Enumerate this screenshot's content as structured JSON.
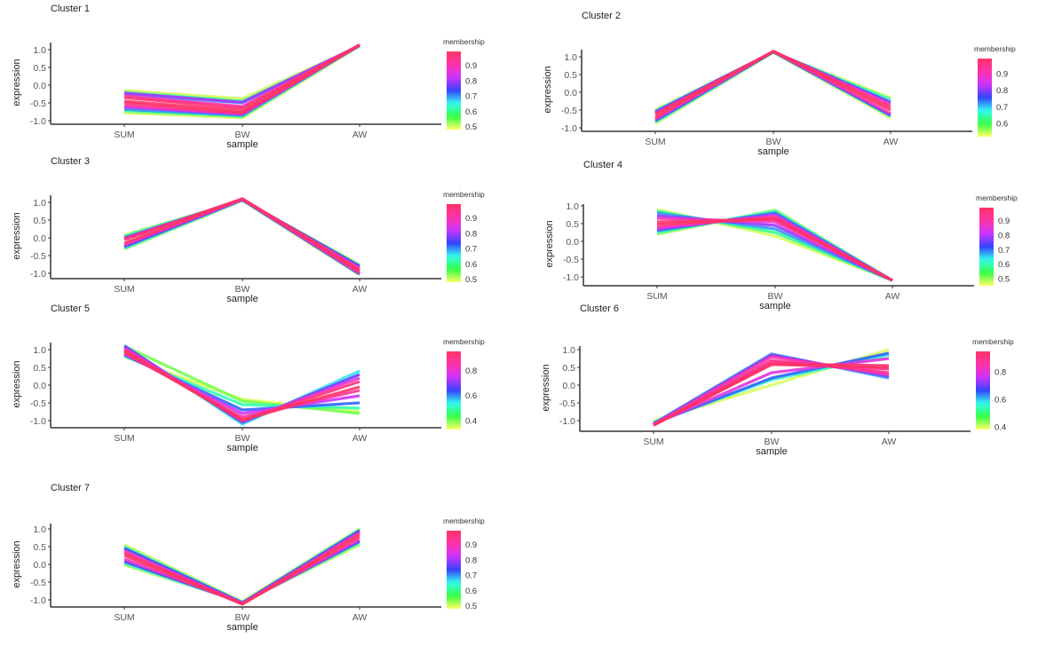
{
  "chart_data": [
    {
      "type": "line",
      "title": "Cluster 1",
      "xlabel": "sample",
      "ylabel": "expression",
      "categories": [
        "SUM",
        "BW",
        "AW"
      ],
      "yticks": [
        "-1.0",
        "-0.5",
        "0.0",
        "0.5",
        "1.0"
      ],
      "ylim": [
        -1.05,
        1.2
      ],
      "legend": {
        "title": "membership",
        "ticks": [
          "0.5",
          "0.6",
          "0.7",
          "0.8",
          "0.9"
        ],
        "range": [
          0.48,
          0.99
        ]
      },
      "lines": [
        [
          0.5,
          -0.15,
          -0.38,
          1.1
        ],
        [
          0.5,
          -0.78,
          -0.92,
          1.1
        ],
        [
          0.6,
          -0.2,
          -0.45,
          1.1
        ],
        [
          0.6,
          -0.72,
          -0.88,
          1.12
        ],
        [
          0.7,
          -0.25,
          -0.5,
          1.12
        ],
        [
          0.7,
          -0.68,
          -0.85,
          1.12
        ],
        [
          0.8,
          -0.22,
          -0.48,
          1.12
        ],
        [
          0.8,
          -0.62,
          -0.82,
          1.13
        ],
        [
          0.9,
          -0.3,
          -0.6,
          1.13
        ],
        [
          0.9,
          -0.58,
          -0.8,
          1.13
        ],
        [
          0.97,
          -0.35,
          -0.65,
          1.13
        ],
        [
          0.98,
          -0.5,
          -0.78,
          1.14
        ],
        [
          0.99,
          -0.45,
          -0.72,
          1.14
        ]
      ]
    },
    {
      "type": "line",
      "title": "Cluster 2",
      "xlabel": "sample",
      "ylabel": "expression",
      "categories": [
        "SUM",
        "BW",
        "AW"
      ],
      "yticks": [
        "-1.0",
        "-0.5",
        "0.0",
        "0.5",
        "1.0"
      ],
      "ylim": [
        -1.05,
        1.2
      ],
      "legend": {
        "title": "membership",
        "ticks": [
          "0.6",
          "0.7",
          "0.8",
          "0.9"
        ],
        "range": [
          0.52,
          0.99
        ]
      },
      "lines": [
        [
          0.53,
          -0.5,
          1.12,
          -0.15
        ],
        [
          0.53,
          -0.88,
          1.12,
          -0.72
        ],
        [
          0.65,
          -0.52,
          1.13,
          -0.2
        ],
        [
          0.65,
          -0.85,
          1.13,
          -0.68
        ],
        [
          0.78,
          -0.55,
          1.14,
          -0.28
        ],
        [
          0.78,
          -0.8,
          1.14,
          -0.65
        ],
        [
          0.9,
          -0.6,
          1.15,
          -0.35
        ],
        [
          0.9,
          -0.75,
          1.15,
          -0.6
        ],
        [
          0.98,
          -0.62,
          1.15,
          -0.42
        ],
        [
          0.99,
          -0.7,
          1.16,
          -0.5
        ]
      ]
    },
    {
      "type": "line",
      "title": "Cluster 3",
      "xlabel": "sample",
      "ylabel": "expression",
      "categories": [
        "SUM",
        "BW",
        "AW"
      ],
      "yticks": [
        "-1.0",
        "-0.5",
        "0.0",
        "0.5",
        "1.0"
      ],
      "ylim": [
        -1.1,
        1.2
      ],
      "legend": {
        "title": "membership",
        "ticks": [
          "0.5",
          "0.6",
          "0.7",
          "0.8",
          "0.9"
        ],
        "range": [
          0.48,
          0.99
        ]
      },
      "lines": [
        [
          0.5,
          0.08,
          1.05,
          -0.75
        ],
        [
          0.5,
          -0.32,
          1.05,
          -1.05
        ],
        [
          0.62,
          0.05,
          1.06,
          -0.78
        ],
        [
          0.62,
          -0.3,
          1.06,
          -1.03
        ],
        [
          0.75,
          0.0,
          1.07,
          -0.8
        ],
        [
          0.75,
          -0.25,
          1.07,
          -1.02
        ],
        [
          0.88,
          -0.02,
          1.08,
          -0.85
        ],
        [
          0.88,
          -0.2,
          1.08,
          -1.0
        ],
        [
          0.97,
          -0.05,
          1.1,
          -0.9
        ],
        [
          0.99,
          -0.15,
          1.1,
          -0.95
        ]
      ]
    },
    {
      "type": "line",
      "title": "Cluster 4",
      "xlabel": "sample",
      "ylabel": "expression",
      "categories": [
        "SUM",
        "BW",
        "AW"
      ],
      "yticks": [
        "-1.0",
        "-0.5",
        "0.0",
        "0.5",
        "1.0"
      ],
      "ylim": [
        -1.2,
        1.05
      ],
      "legend": {
        "title": "membership",
        "ticks": [
          "0.5",
          "0.6",
          "0.7",
          "0.8",
          "0.9"
        ],
        "range": [
          0.45,
          0.99
        ]
      },
      "lines": [
        [
          0.47,
          0.9,
          0.15,
          -1.1
        ],
        [
          0.5,
          0.2,
          0.88,
          -1.1
        ],
        [
          0.58,
          0.85,
          0.25,
          -1.1
        ],
        [
          0.6,
          0.25,
          0.85,
          -1.1
        ],
        [
          0.68,
          0.8,
          0.35,
          -1.1
        ],
        [
          0.7,
          0.3,
          0.8,
          -1.1
        ],
        [
          0.78,
          0.72,
          0.45,
          -1.1
        ],
        [
          0.8,
          0.35,
          0.75,
          -1.1
        ],
        [
          0.88,
          0.65,
          0.55,
          -1.1
        ],
        [
          0.9,
          0.4,
          0.7,
          -1.1
        ],
        [
          0.97,
          0.55,
          0.62,
          -1.1
        ],
        [
          0.99,
          0.48,
          0.65,
          -1.1
        ]
      ]
    },
    {
      "type": "line",
      "title": "Cluster 5",
      "xlabel": "sample",
      "ylabel": "expression",
      "categories": [
        "SUM",
        "BW",
        "AW"
      ],
      "yticks": [
        "-1.0",
        "-0.5",
        "0.0",
        "0.5",
        "1.0"
      ],
      "ylim": [
        -1.15,
        1.2
      ],
      "legend": {
        "title": "membership",
        "ticks": [
          "0.4",
          "0.6",
          "0.8"
        ],
        "range": [
          0.33,
          0.95
        ]
      },
      "lines": [
        [
          0.35,
          0.8,
          -0.4,
          -0.75
        ],
        [
          0.4,
          1.1,
          -0.45,
          -0.8
        ],
        [
          0.5,
          0.82,
          -0.55,
          -0.65
        ],
        [
          0.55,
          1.12,
          -1.1,
          0.4
        ],
        [
          0.62,
          0.85,
          -0.7,
          -0.5
        ],
        [
          0.68,
          1.1,
          -1.05,
          0.3
        ],
        [
          0.75,
          0.88,
          -0.8,
          -0.3
        ],
        [
          0.8,
          1.05,
          -1.0,
          0.2
        ],
        [
          0.88,
          0.9,
          -0.9,
          -0.15
        ],
        [
          0.92,
          1.0,
          -1.0,
          0.1
        ],
        [
          0.95,
          0.95,
          -0.98,
          -0.05
        ]
      ]
    },
    {
      "type": "line",
      "title": "Cluster 6",
      "xlabel": "sample",
      "ylabel": "expression",
      "categories": [
        "SUM",
        "BW",
        "AW"
      ],
      "yticks": [
        "-1.0",
        "-0.5",
        "0.0",
        "0.5",
        "1.0"
      ],
      "ylim": [
        -1.25,
        1.1
      ],
      "legend": {
        "title": "membership",
        "ticks": [
          "0.4",
          "0.6",
          "0.8"
        ],
        "range": [
          0.38,
          0.95
        ]
      },
      "lines": [
        [
          0.4,
          -1.0,
          0.0,
          1.0
        ],
        [
          0.55,
          -1.05,
          0.15,
          0.85
        ],
        [
          0.62,
          -1.08,
          0.88,
          0.2
        ],
        [
          0.65,
          -1.08,
          0.2,
          0.9
        ],
        [
          0.72,
          -1.1,
          0.85,
          0.25
        ],
        [
          0.8,
          -1.1,
          0.35,
          0.75
        ],
        [
          0.85,
          -1.12,
          0.8,
          0.3
        ],
        [
          0.88,
          -1.12,
          0.7,
          0.35
        ],
        [
          0.9,
          -1.12,
          0.65,
          0.45
        ],
        [
          0.93,
          -1.13,
          0.6,
          0.55
        ],
        [
          0.95,
          -1.13,
          0.58,
          0.5
        ]
      ]
    },
    {
      "type": "line",
      "title": "Cluster 7",
      "xlabel": "sample",
      "ylabel": "expression",
      "categories": [
        "SUM",
        "BW",
        "AW"
      ],
      "yticks": [
        "-1.0",
        "-0.5",
        "0.0",
        "0.5",
        "1.0"
      ],
      "ylim": [
        -1.15,
        1.15
      ],
      "legend": {
        "title": "membership",
        "ticks": [
          "0.5",
          "0.6",
          "0.7",
          "0.8",
          "0.9"
        ],
        "range": [
          0.48,
          0.99
        ]
      },
      "lines": [
        [
          0.5,
          0.55,
          -1.05,
          0.55
        ],
        [
          0.5,
          -0.02,
          -1.05,
          1.0
        ],
        [
          0.62,
          0.5,
          -1.07,
          0.6
        ],
        [
          0.62,
          0.02,
          -1.07,
          0.98
        ],
        [
          0.75,
          0.45,
          -1.08,
          0.65
        ],
        [
          0.75,
          0.08,
          -1.08,
          0.95
        ],
        [
          0.88,
          0.38,
          -1.1,
          0.7
        ],
        [
          0.88,
          0.15,
          -1.1,
          0.9
        ],
        [
          0.97,
          0.32,
          -1.12,
          0.78
        ],
        [
          0.99,
          0.25,
          -1.12,
          0.85
        ]
      ]
    }
  ],
  "colors": {
    "scale": [
      "#ffff66",
      "#33ff44",
      "#33ffee",
      "#3344ff",
      "#cc33ff",
      "#ff33aa",
      "#ff3366"
    ],
    "axis": "#333333",
    "text": "#555555"
  }
}
